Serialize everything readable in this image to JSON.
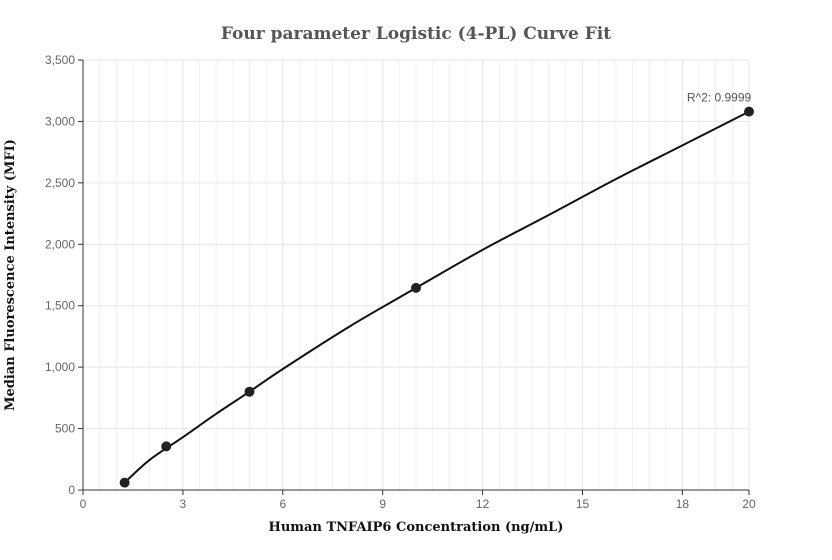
{
  "chart_data": {
    "type": "scatter",
    "title": "Four parameter Logistic (4-PL) Curve Fit",
    "xlabel": "Human TNFAIP6 Concentration (ng/mL)",
    "ylabel": "Median Fluorescence Intensity (MFI)",
    "xlim": [
      0,
      20
    ],
    "ylim": [
      0,
      3500
    ],
    "x_ticks": [
      0,
      3,
      6,
      9,
      12,
      15,
      18,
      20
    ],
    "y_ticks": [
      0,
      500,
      1000,
      1500,
      2000,
      2500,
      3000,
      3500
    ],
    "x_tick_labels": [
      "0",
      "3",
      "6",
      "9",
      "12",
      "15",
      "18",
      "20"
    ],
    "y_tick_labels": [
      "0",
      "500",
      "1,000",
      "1,500",
      "2,000",
      "2,500",
      "3,000",
      "3,500"
    ],
    "grid": true,
    "series": [
      {
        "kind": "points",
        "x": [
          1.25,
          2.5,
          5,
          10,
          20
        ],
        "y": [
          60,
          355,
          800,
          1645,
          3080
        ]
      },
      {
        "kind": "fit-curve",
        "x": [
          1.25,
          2.0,
          3.0,
          4.0,
          5.0,
          6.0,
          8.0,
          10.0,
          12.0,
          14.0,
          16.0,
          18.0,
          20.0
        ],
        "y": [
          60,
          245,
          430,
          620,
          800,
          985,
          1330,
          1645,
          1955,
          2240,
          2530,
          2805,
          3080
        ]
      }
    ],
    "annotation": "R^2: 0.9999",
    "colors": {
      "points": "#222222",
      "curve": "#111111",
      "grid": "#e6e6ec",
      "axis": "#333333"
    }
  }
}
